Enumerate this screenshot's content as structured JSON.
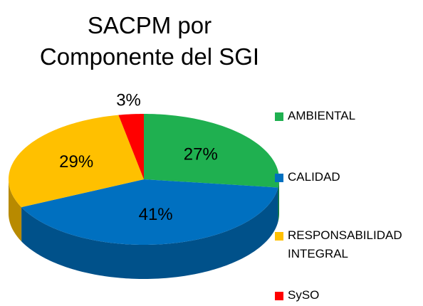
{
  "chart_data": {
    "type": "pie",
    "title": "SACPM por Componente del SGI",
    "categories": [
      "AMBIENTAL",
      "CALIDAD",
      "RESPONSABILIDAD INTEGRAL",
      "SySO"
    ],
    "values": [
      27,
      41,
      29,
      3
    ],
    "value_labels": [
      "27%",
      "41%",
      "29%",
      "3%"
    ],
    "colors": [
      "#1fb050",
      "#0070c0",
      "#ffc000",
      "#ff0000"
    ],
    "legend": "right"
  }
}
